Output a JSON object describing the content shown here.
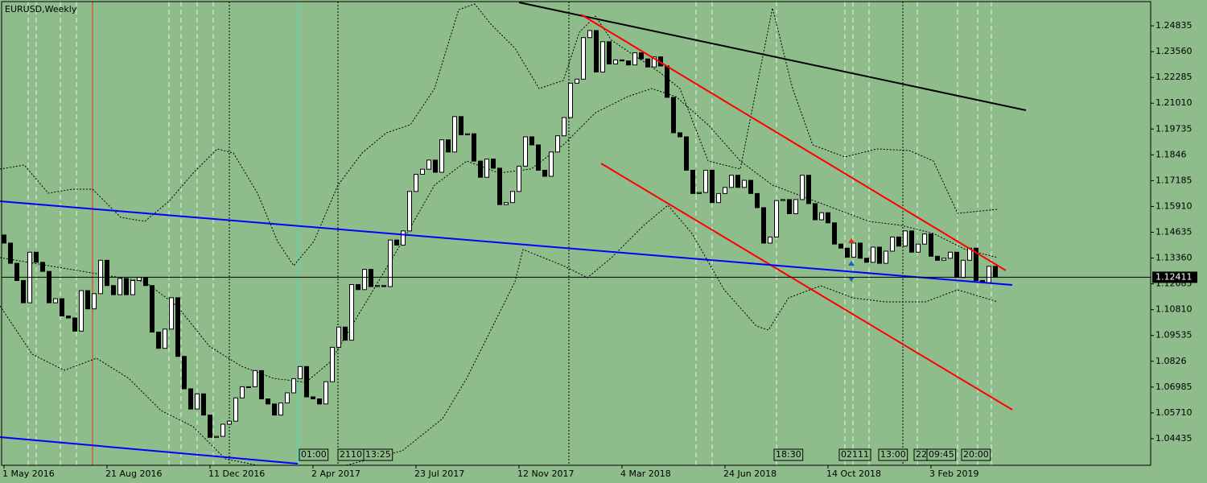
{
  "chart_data": {
    "type": "candlestick",
    "title": "EURUSD,Weekly",
    "ylim": [
      1.0312,
      1.2611
    ],
    "yticks": [
      1.24835,
      {
        "value": 1.2356,
        "label": "1.23560"
      },
      1.22285,
      {
        "value": 1.2101,
        "label": "1.21010"
      },
      1.19735,
      1.1846,
      1.17185,
      {
        "value": 1.1591,
        "label": "1.15910"
      },
      1.14635,
      {
        "value": 1.1336,
        "label": "1.13360"
      },
      1.12085,
      {
        "value": 1.1081,
        "label": "1.10810"
      },
      1.09535,
      1.0826,
      1.06985,
      {
        "value": 1.0571,
        "label": "1.05710"
      },
      1.04435
    ],
    "last_price": 1.12411,
    "categories": [
      "1 May 2016",
      null,
      null,
      null,
      null,
      null,
      null,
      null,
      null,
      null,
      null,
      null,
      null,
      null,
      null,
      null,
      "21 Aug 2016",
      null,
      null,
      null,
      null,
      null,
      null,
      null,
      null,
      null,
      null,
      null,
      null,
      null,
      null,
      null,
      "11 Dec 2016",
      null,
      null,
      null,
      null,
      null,
      null,
      null,
      null,
      null,
      null,
      null,
      null,
      null,
      null,
      null,
      "2 Apr 2017",
      null,
      null,
      null,
      null,
      null,
      null,
      null,
      null,
      null,
      null,
      null,
      null,
      null,
      null,
      null,
      "23 Jul 2017",
      null,
      null,
      null,
      null,
      null,
      null,
      null,
      null,
      null,
      null,
      null,
      null,
      null,
      null,
      null,
      "12 Nov 2017",
      null,
      null,
      null,
      null,
      null,
      null,
      null,
      null,
      null,
      null,
      null,
      null,
      null,
      null,
      null,
      "4 Mar 2018",
      null,
      null,
      null,
      null,
      null,
      null,
      null,
      null,
      null,
      null,
      null,
      null,
      null,
      null,
      null,
      "24 Jun 2018",
      null,
      null,
      null,
      null,
      null,
      null,
      null,
      null,
      null,
      null,
      null,
      null,
      null,
      null,
      null,
      "14 Oct 2018",
      null,
      null,
      null,
      null,
      null,
      null,
      null,
      null,
      null,
      null,
      null,
      null,
      null,
      null,
      null,
      "3 Feb 2019",
      null,
      null,
      null,
      null,
      null,
      null,
      null,
      null,
      null,
      null
    ],
    "open": [
      1.145,
      1.141,
      1.131,
      1.1225,
      1.1115,
      1.1365,
      1.1315,
      1.127,
      1.1115,
      1.1135,
      1.105,
      1.104,
      1.0975,
      1.1175,
      1.1085,
      1.116,
      1.1325,
      1.12,
      1.1155,
      1.1235,
      1.1155,
      1.1225,
      1.124,
      1.12,
      1.097,
      1.089,
      1.0985,
      1.114,
      1.085,
      1.069,
      1.059,
      1.0665,
      1.056,
      1.045,
      1.0455,
      1.0515,
      1.053,
      1.0645,
      1.07,
      1.07,
      1.078,
      1.064,
      1.0615,
      1.056,
      1.062,
      1.067,
      1.074,
      1.08,
      1.065,
      1.064,
      1.0615,
      1.0725,
      1.0895,
      1.0995,
      1.093,
      1.1205,
      1.118,
      1.128,
      1.1195,
      1.12,
      1.1195,
      1.1425,
      1.14,
      1.147,
      1.1665,
      1.175,
      1.1775,
      1.182,
      1.176,
      1.192,
      1.186,
      1.2035,
      1.1945,
      1.195,
      1.1815,
      1.1735,
      1.1825,
      1.178,
      1.16,
      1.161,
      1.1665,
      1.179,
      1.1935,
      1.1895,
      1.177,
      1.174,
      1.186,
      1.194,
      1.203,
      1.22,
      1.222,
      1.2425,
      1.246,
      1.2255,
      1.2405,
      1.2295,
      1.2315,
      1.231,
      1.229,
      1.235,
      1.232,
      1.228,
      1.233,
      1.2285,
      1.213,
      1.1955,
      1.1935,
      1.177,
      1.1655,
      1.166,
      1.177,
      1.161,
      1.1655,
      1.1685,
      1.1745,
      1.1685,
      1.172,
      1.1655,
      1.1585,
      1.141,
      1.144,
      1.162,
      1.1625,
      1.1555,
      1.1625,
      1.1745,
      1.1605,
      1.1525,
      1.156,
      1.151,
      1.1405,
      1.1385,
      1.134,
      1.141,
      1.1335,
      1.1315,
      1.139,
      1.131,
      1.137,
      1.144,
      1.1395,
      1.147,
      1.1365,
      1.1405,
      1.1455,
      1.1345,
      1.1325,
      1.1335,
      1.1365,
      1.124,
      1.1325,
      1.1385,
      1.1225,
      1.1215,
      1.1295
    ],
    "close": [
      1.141,
      1.131,
      1.1225,
      1.1115,
      1.1365,
      1.1315,
      1.127,
      1.1115,
      1.1135,
      1.105,
      1.104,
      1.0975,
      1.1175,
      1.1085,
      1.116,
      1.1325,
      1.12,
      1.1155,
      1.1235,
      1.1155,
      1.1225,
      1.124,
      1.12,
      1.097,
      1.089,
      1.0985,
      1.114,
      1.085,
      1.069,
      1.059,
      1.0665,
      1.056,
      1.045,
      1.0455,
      1.0515,
      1.053,
      1.0645,
      1.07,
      1.07,
      1.078,
      1.064,
      1.0615,
      1.056,
      1.062,
      1.067,
      1.074,
      1.08,
      1.065,
      1.064,
      1.0615,
      1.0725,
      1.0895,
      1.0995,
      1.093,
      1.1205,
      1.118,
      1.128,
      1.1195,
      1.12,
      1.1195,
      1.1425,
      1.14,
      1.147,
      1.1665,
      1.175,
      1.1775,
      1.182,
      1.176,
      1.192,
      1.186,
      1.2035,
      1.1945,
      1.195,
      1.1815,
      1.1735,
      1.1825,
      1.178,
      1.16,
      1.161,
      1.1665,
      1.179,
      1.1935,
      1.1895,
      1.177,
      1.174,
      1.186,
      1.194,
      1.203,
      1.22,
      1.222,
      1.2425,
      1.246,
      1.2255,
      1.2405,
      1.2295,
      1.2315,
      1.231,
      1.229,
      1.235,
      1.232,
      1.228,
      1.233,
      1.2285,
      1.213,
      1.1955,
      1.1935,
      1.177,
      1.1655,
      1.166,
      1.177,
      1.161,
      1.1655,
      1.1685,
      1.1745,
      1.1685,
      1.172,
      1.1655,
      1.1585,
      1.141,
      1.144,
      1.162,
      1.1625,
      1.1555,
      1.1625,
      1.1745,
      1.1605,
      1.1525,
      1.156,
      1.151,
      1.1405,
      1.1385,
      1.134,
      1.141,
      1.1335,
      1.1315,
      1.139,
      1.131,
      1.137,
      1.144,
      1.1395,
      1.147,
      1.1365,
      1.1405,
      1.1455,
      1.1345,
      1.1325,
      1.1335,
      1.1365,
      1.124,
      1.1325,
      1.1385,
      1.1225,
      1.1215,
      1.1295,
      1.1241
    ],
    "time_markers": [
      "01:00",
      "2110",
      "13:25",
      "18:30",
      "02111",
      "13:00",
      "22",
      "09:45",
      "20:00"
    ]
  }
}
